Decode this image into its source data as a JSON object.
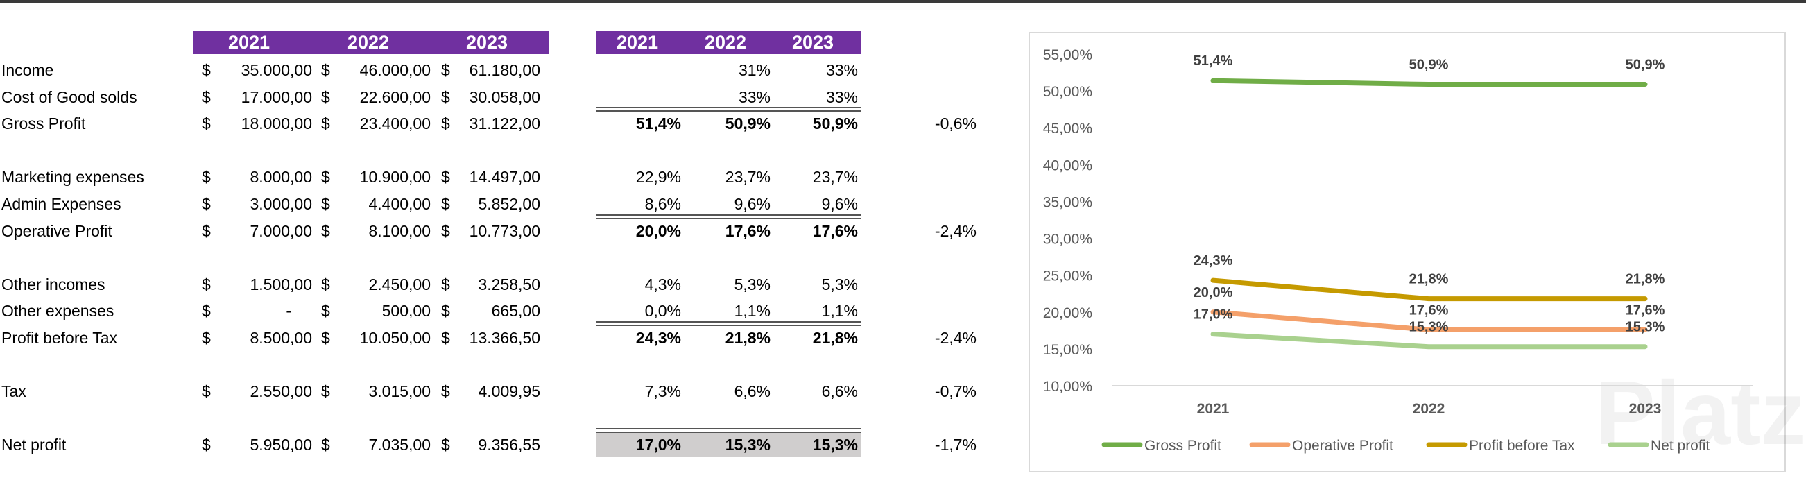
{
  "table": {
    "years": [
      "2021",
      "2022",
      "2023"
    ],
    "pct_years": [
      "2021",
      "2022",
      "2023"
    ],
    "groups": [
      [
        {
          "label": "Income",
          "values": [
            "$ 35.000,00",
            "$ 46.000,00",
            "$ 61.180,00"
          ],
          "pct": [
            "",
            "31%",
            "33%"
          ],
          "delta": "",
          "total": false
        },
        {
          "label": "Cost of Good solds",
          "values": [
            "$ 17.000,00",
            "$ 22.600,00",
            "$ 30.058,00"
          ],
          "pct": [
            "",
            "33%",
            "33%"
          ],
          "delta": "",
          "total": false
        },
        {
          "label": "Gross Profit",
          "values": [
            "$ 18.000,00",
            "$ 23.400,00",
            "$ 31.122,00"
          ],
          "pct": [
            "51,4%",
            "50,9%",
            "50,9%"
          ],
          "delta": "-0,6%",
          "total": true
        }
      ],
      [
        {
          "label": "Marketing expenses",
          "values": [
            "$ 8.000,00",
            "$ 10.900,00",
            "$ 14.497,00"
          ],
          "pct": [
            "22,9%",
            "23,7%",
            "23,7%"
          ],
          "delta": "",
          "total": false
        },
        {
          "label": "Admin Expenses",
          "values": [
            "$ 3.000,00",
            "$ 4.400,00",
            "$ 5.852,00"
          ],
          "pct": [
            "8,6%",
            "9,6%",
            "9,6%"
          ],
          "delta": "",
          "total": false
        },
        {
          "label": "Operative Profit",
          "values": [
            "$ 7.000,00",
            "$ 8.100,00",
            "$ 10.773,00"
          ],
          "pct": [
            "20,0%",
            "17,6%",
            "17,6%"
          ],
          "delta": "-2,4%",
          "total": true
        }
      ],
      [
        {
          "label": "Other incomes",
          "values": [
            "$ 1.500,00",
            "$ 2.450,00",
            "$ 3.258,50"
          ],
          "pct": [
            "4,3%",
            "5,3%",
            "5,3%"
          ],
          "delta": "",
          "total": false
        },
        {
          "label": "Other expenses",
          "values": [
            "$ -",
            "$ 500,00",
            "$ 665,00"
          ],
          "pct": [
            "0,0%",
            "1,1%",
            "1,1%"
          ],
          "delta": "",
          "total": false
        },
        {
          "label": "Profit before Tax",
          "values": [
            "$ 8.500,00",
            "$ 10.050,00",
            "$ 13.366,50"
          ],
          "pct": [
            "24,3%",
            "21,8%",
            "21,8%"
          ],
          "delta": "-2,4%",
          "total": true
        }
      ],
      [
        {
          "label": "Tax",
          "values": [
            "$ 2.550,00",
            "$ 3.015,00",
            "$ 4.009,95"
          ],
          "pct": [
            "7,3%",
            "6,6%",
            "6,6%"
          ],
          "delta": "-0,7%",
          "total": false
        }
      ],
      [
        {
          "label": "Net profit",
          "values": [
            "$ 5.950,00",
            "$ 7.035,00",
            "$ 9.356,55"
          ],
          "pct": [
            "17,0%",
            "15,3%",
            "15,3%"
          ],
          "delta": "-1,7%",
          "total": true,
          "shaded": true
        }
      ]
    ],
    "colors": {
      "header": "#7030A0",
      "shade": "#D0CECE"
    }
  },
  "chart_data": {
    "type": "line",
    "categories": [
      "2021",
      "2022",
      "2023"
    ],
    "ylim": [
      10,
      55
    ],
    "yticks": [
      "10,00%",
      "15,00%",
      "20,00%",
      "25,00%",
      "30,00%",
      "35,00%",
      "40,00%",
      "45,00%",
      "50,00%",
      "55,00%"
    ],
    "grid": false,
    "legend": "bottom",
    "series": [
      {
        "name": "Gross Profit",
        "values": [
          51.4,
          50.9,
          50.9
        ],
        "labels": [
          "51,4%",
          "50,9%",
          "50,9%"
        ],
        "color": "#70AD47"
      },
      {
        "name": "Operative Profit",
        "values": [
          20.0,
          17.6,
          17.6
        ],
        "labels": [
          "20,0%",
          "17,6%",
          "17,6%"
        ],
        "color": "#F4A06A"
      },
      {
        "name": "Profit before Tax",
        "values": [
          24.3,
          21.8,
          21.8
        ],
        "labels": [
          "24,3%",
          "21,8%",
          "21,8%"
        ],
        "color": "#C59A00"
      },
      {
        "name": "Net profit",
        "values": [
          17.0,
          15.3,
          15.3
        ],
        "labels": [
          "17,0%",
          "15,3%",
          "15,3%"
        ],
        "color": "#A9D18E"
      }
    ]
  },
  "watermark": "Platzi"
}
